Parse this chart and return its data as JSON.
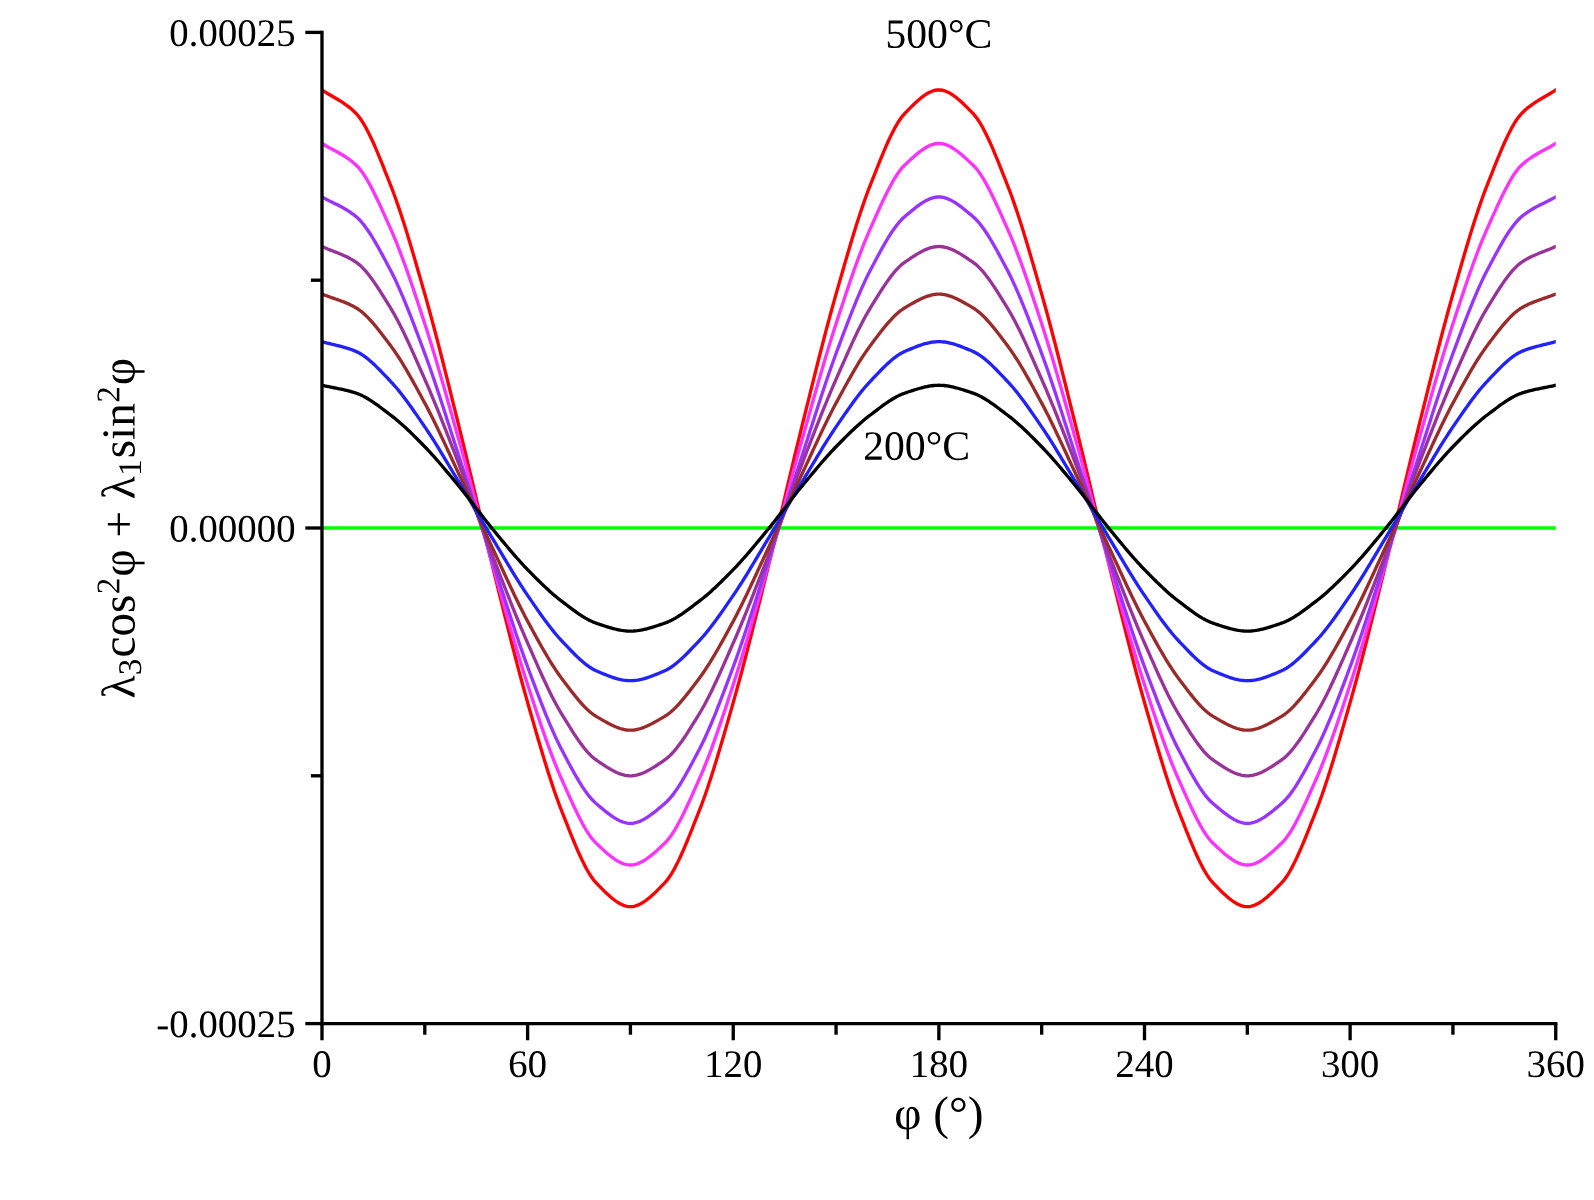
{
  "chart_data": {
    "type": "line",
    "xlabel": "φ (°)",
    "ylabel": "λ$_{3}$cos$^{2}$φ + λ$_{1}$sin$^{2}$φ",
    "x": [
      0,
      10,
      20,
      30,
      40,
      50,
      60,
      70,
      80,
      90,
      100,
      110,
      120,
      130,
      140,
      150,
      160,
      170,
      180,
      190,
      200,
      210,
      220,
      230,
      240,
      250,
      260,
      270,
      280,
      290,
      300,
      310,
      320,
      330,
      340,
      350,
      360
    ],
    "series": [
      {
        "color": "#ff0000",
        "values": [
          0.000221,
          0.000209,
          0.000173,
          0.000118,
          5.1e-05,
          -2.1e-05,
          -8.8e-05,
          -0.000143,
          -0.000179,
          -0.000191,
          -0.000179,
          -0.000143,
          -8.8e-05,
          -2.1e-05,
          5.1e-05,
          0.000118,
          0.000173,
          0.000209,
          0.000221,
          0.000209,
          0.000173,
          0.000118,
          5.1e-05,
          -2.1e-05,
          -8.8e-05,
          -0.000143,
          -0.000179,
          -0.000191,
          -0.000179,
          -0.000143,
          -8.8e-05,
          -2.1e-05,
          5.1e-05,
          0.000118,
          0.000173,
          0.000209,
          0.000221
        ]
      },
      {
        "color": "#ff33ff",
        "values": [
          0.000194,
          0.000183,
          0.000151,
          0.000103,
          4.4e-05,
          -2e-05,
          -7.9e-05,
          -0.000127,
          -0.000159,
          -0.00017,
          -0.000159,
          -0.000127,
          -7.9e-05,
          -2e-05,
          4.4e-05,
          0.000103,
          0.000151,
          0.000183,
          0.000194,
          0.000183,
          0.000151,
          0.000103,
          4.4e-05,
          -2e-05,
          -7.9e-05,
          -0.000127,
          -0.000159,
          -0.00017,
          -0.000159,
          -0.000127,
          -7.9e-05,
          -2e-05,
          4.4e-05,
          0.000103,
          0.000151,
          0.000183,
          0.000194
        ]
      },
      {
        "color": "#9933ff",
        "values": [
          0.000167,
          0.000157,
          0.00013,
          8.8e-05,
          3.6e-05,
          -1.8e-05,
          -7e-05,
          -0.000112,
          -0.000139,
          -0.000149,
          -0.000139,
          -0.000112,
          -7e-05,
          -1.8e-05,
          3.6e-05,
          8.8e-05,
          0.00013,
          0.000157,
          0.000167,
          0.000157,
          0.00013,
          8.8e-05,
          3.6e-05,
          -1.8e-05,
          -7e-05,
          -0.000112,
          -0.000139,
          -0.000149,
          -0.000139,
          -0.000112,
          -7e-05,
          -1.8e-05,
          3.6e-05,
          8.8e-05,
          0.00013,
          0.000157,
          0.000167
        ]
      },
      {
        "color": "#993399",
        "values": [
          0.000142,
          0.000134,
          0.000111,
          7.5e-05,
          3.2e-05,
          -1.5e-05,
          -5.8e-05,
          -9.4e-05,
          -0.000117,
          -0.000125,
          -0.000117,
          -9.4e-05,
          -5.8e-05,
          -1.5e-05,
          3.2e-05,
          7.5e-05,
          0.000111,
          0.000134,
          0.000142,
          0.000134,
          0.000111,
          7.5e-05,
          3.2e-05,
          -1.5e-05,
          -5.8e-05,
          -9.4e-05,
          -0.000117,
          -0.000125,
          -0.000117,
          -9.4e-05,
          -5.8e-05,
          -1.5e-05,
          3.2e-05,
          7.5e-05,
          0.000111,
          0.000134,
          0.000142
        ]
      },
      {
        "color": "#992b2b",
        "values": [
          0.000118,
          0.000111,
          9.2e-05,
          6.3e-05,
          2.7e-05,
          -1.1e-05,
          -4.7e-05,
          -7.6e-05,
          -9.5e-05,
          -0.000102,
          -9.5e-05,
          -7.6e-05,
          -4.7e-05,
          -1.1e-05,
          2.7e-05,
          6.3e-05,
          9.2e-05,
          0.000111,
          0.000118,
          0.000111,
          9.2e-05,
          6.3e-05,
          2.7e-05,
          -1.1e-05,
          -4.7e-05,
          -7.6e-05,
          -9.5e-05,
          -0.000102,
          -9.5e-05,
          -7.6e-05,
          -4.7e-05,
          -1.1e-05,
          2.7e-05,
          6.3e-05,
          9.2e-05,
          0.000111,
          0.000118
        ]
      },
      {
        "color": "#2222ff",
        "values": [
          9.4e-05,
          8.9e-05,
          7.4e-05,
          5.1e-05,
          2.3e-05,
          -6e-06,
          -3.4e-05,
          -5.7e-05,
          -7.2e-05,
          -7.7e-05,
          -7.2e-05,
          -5.7e-05,
          -3.4e-05,
          -6e-06,
          2.3e-05,
          5.1e-05,
          7.4e-05,
          8.9e-05,
          9.4e-05,
          8.9e-05,
          7.4e-05,
          5.1e-05,
          2.3e-05,
          -6e-06,
          -3.4e-05,
          -5.7e-05,
          -7.2e-05,
          -7.7e-05,
          -7.2e-05,
          -5.7e-05,
          -3.4e-05,
          -6e-06,
          2.3e-05,
          5.1e-05,
          7.4e-05,
          8.9e-05,
          9.4e-05
        ]
      },
      {
        "color": "#000000",
        "values": [
          7.2e-05,
          6.8e-05,
          5.7e-05,
          4.1e-05,
          2.1e-05,
          -1e-06,
          -2.1e-05,
          -3.7e-05,
          -4.8e-05,
          -5.2e-05,
          -4.8e-05,
          -3.7e-05,
          -2.1e-05,
          -1e-06,
          2.1e-05,
          4.1e-05,
          5.7e-05,
          6.8e-05,
          7.2e-05,
          6.8e-05,
          5.7e-05,
          4.1e-05,
          2.1e-05,
          -1e-06,
          -2.1e-05,
          -3.7e-05,
          -4.8e-05,
          -5.2e-05,
          -4.8e-05,
          -3.7e-05,
          -2.1e-05,
          -1e-06,
          2.1e-05,
          4.1e-05,
          5.7e-05,
          6.8e-05,
          7.2e-05
        ]
      }
    ],
    "annotations": [
      {
        "text": "500°C",
        "x": 180,
        "y": 0.000221
      },
      {
        "text": "200°C",
        "x": 180,
        "y": 7.2e-05
      }
    ],
    "ref_lines": [
      {
        "axis": "y",
        "value": 0,
        "color": "#00ff00"
      }
    ],
    "xlim": [
      0,
      360
    ],
    "xticks": [
      0,
      {
        "value": 30,
        "label": null
      },
      60,
      {
        "value": 90,
        "label": null
      },
      120,
      {
        "value": 150,
        "label": null
      },
      180,
      {
        "value": 210,
        "label": null
      },
      240,
      {
        "value": 270,
        "label": null
      },
      300,
      {
        "value": 330,
        "label": null
      },
      360
    ],
    "ylim": [
      -0.00025,
      0.00025
    ],
    "yticks": [
      {
        "value": -0.00025,
        "label": "-0.00025"
      },
      {
        "value": -0.000125,
        "label": null
      },
      {
        "value": 0,
        "label": "0.00000"
      },
      {
        "value": 0.000125,
        "label": null
      },
      {
        "value": 0.00025,
        "label": "0.00025"
      }
    ],
    "grid": false,
    "legend": false,
    "marker": "none",
    "line_style": "solid"
  }
}
